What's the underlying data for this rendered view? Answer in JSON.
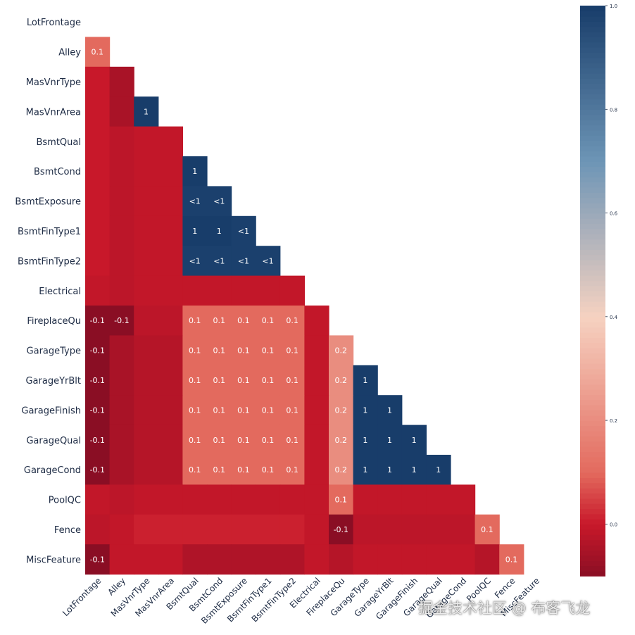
{
  "chart_data": {
    "type": "heatmap",
    "title": "",
    "variables": [
      "LotFrontage",
      "Alley",
      "MasVnrType",
      "MasVnrArea",
      "BsmtQual",
      "BsmtCond",
      "BsmtExposure",
      "BsmtFinType1",
      "BsmtFinType2",
      "Electrical",
      "FireplaceQu",
      "GarageType",
      "GarageYrBlt",
      "GarageFinish",
      "GarageQual",
      "GarageCond",
      "PoolQC",
      "Fence",
      "MiscFeature"
    ],
    "mask": "upper-triangle-and-diagonal",
    "matrix": [
      [],
      [
        0.1
      ],
      [
        0.0,
        -0.05
      ],
      [
        0.0,
        -0.05,
        1.0
      ],
      [
        0.0,
        -0.02,
        -0.01,
        -0.01
      ],
      [
        0.0,
        -0.02,
        -0.01,
        -0.01,
        1.0
      ],
      [
        0.0,
        -0.02,
        -0.01,
        -0.01,
        0.99,
        0.99
      ],
      [
        0.0,
        -0.02,
        -0.01,
        -0.01,
        1.0,
        1.0,
        0.99
      ],
      [
        0.0,
        -0.02,
        -0.01,
        -0.01,
        0.99,
        0.99,
        0.99,
        0.99
      ],
      [
        -0.01,
        -0.02,
        -0.01,
        -0.01,
        -0.01,
        -0.01,
        -0.01,
        -0.01,
        -0.01
      ],
      [
        -0.1,
        -0.1,
        -0.02,
        -0.02,
        0.1,
        0.1,
        0.1,
        0.1,
        0.1,
        -0.01
      ],
      [
        -0.1,
        -0.05,
        -0.03,
        -0.03,
        0.1,
        0.1,
        0.1,
        0.1,
        0.1,
        -0.01,
        0.2
      ],
      [
        -0.1,
        -0.05,
        -0.03,
        -0.03,
        0.1,
        0.1,
        0.1,
        0.1,
        0.1,
        -0.01,
        0.2,
        1.0
      ],
      [
        -0.1,
        -0.05,
        -0.03,
        -0.03,
        0.1,
        0.1,
        0.1,
        0.1,
        0.1,
        -0.01,
        0.2,
        1.0,
        1.0
      ],
      [
        -0.1,
        -0.05,
        -0.03,
        -0.03,
        0.1,
        0.1,
        0.1,
        0.1,
        0.1,
        -0.01,
        0.2,
        1.0,
        1.0,
        1.0
      ],
      [
        -0.1,
        -0.05,
        -0.03,
        -0.03,
        0.1,
        0.1,
        0.1,
        0.1,
        0.1,
        -0.01,
        0.2,
        1.0,
        1.0,
        1.0,
        1.0
      ],
      [
        -0.01,
        -0.02,
        -0.01,
        -0.01,
        -0.01,
        -0.01,
        -0.01,
        -0.01,
        -0.01,
        -0.01,
        0.1,
        -0.01,
        -0.01,
        -0.01,
        -0.01,
        -0.01
      ],
      [
        -0.02,
        -0.01,
        0.01,
        0.01,
        0.01,
        0.01,
        0.01,
        0.01,
        0.01,
        -0.01,
        -0.1,
        -0.02,
        -0.02,
        -0.02,
        -0.02,
        -0.02,
        0.1
      ],
      [
        -0.1,
        -0.01,
        -0.01,
        -0.01,
        -0.04,
        -0.04,
        -0.04,
        -0.04,
        -0.04,
        -0.01,
        -0.03,
        -0.01,
        -0.01,
        -0.01,
        -0.01,
        -0.01,
        -0.03,
        0.1
      ]
    ],
    "annotations": [
      [],
      [
        "0.1"
      ],
      [
        "",
        ""
      ],
      [
        "",
        "",
        "1"
      ],
      [
        "",
        "",
        "",
        ""
      ],
      [
        "",
        "",
        "",
        "",
        "1"
      ],
      [
        "",
        "",
        "",
        "",
        "<1",
        "<1"
      ],
      [
        "",
        "",
        "",
        "",
        "1",
        "1",
        "<1"
      ],
      [
        "",
        "",
        "",
        "",
        "<1",
        "<1",
        "<1",
        "<1"
      ],
      [
        "",
        "",
        "",
        "",
        "",
        "",
        "",
        "",
        ""
      ],
      [
        "-0.1",
        "-0.1",
        "",
        "",
        "0.1",
        "0.1",
        "0.1",
        "0.1",
        "0.1",
        ""
      ],
      [
        "-0.1",
        "",
        "",
        "",
        "0.1",
        "0.1",
        "0.1",
        "0.1",
        "0.1",
        "",
        "0.2"
      ],
      [
        "-0.1",
        "",
        "",
        "",
        "0.1",
        "0.1",
        "0.1",
        "0.1",
        "0.1",
        "",
        "0.2",
        "1"
      ],
      [
        "-0.1",
        "",
        "",
        "",
        "0.1",
        "0.1",
        "0.1",
        "0.1",
        "0.1",
        "",
        "0.2",
        "1",
        "1"
      ],
      [
        "-0.1",
        "",
        "",
        "",
        "0.1",
        "0.1",
        "0.1",
        "0.1",
        "0.1",
        "",
        "0.2",
        "1",
        "1",
        "1"
      ],
      [
        "-0.1",
        "",
        "",
        "",
        "0.1",
        "0.1",
        "0.1",
        "0.1",
        "0.1",
        "",
        "0.2",
        "1",
        "1",
        "1",
        "1"
      ],
      [
        "",
        "",
        "",
        "",
        "",
        "",
        "",
        "",
        "",
        "",
        "0.1",
        "",
        "",
        "",
        "",
        ""
      ],
      [
        "",
        "",
        "",
        "",
        "",
        "",
        "",
        "",
        "",
        "",
        "-0.1",
        "",
        "",
        "",
        "",
        "",
        "0.1"
      ],
      [
        "-0.1",
        "",
        "",
        "",
        "",
        "",
        "",
        "",
        "",
        "",
        "",
        "",
        "",
        "",
        "",
        "",
        "",
        "0.1"
      ]
    ],
    "colorbar": {
      "range": [
        -0.1,
        1.0
      ],
      "ticks": [
        {
          "value": 1.0,
          "label": "1.0"
        },
        {
          "value": 0.8,
          "label": "0.8"
        },
        {
          "value": 0.6,
          "label": "0.6"
        },
        {
          "value": 0.4,
          "label": "0.4"
        },
        {
          "value": 0.2,
          "label": "0.2"
        },
        {
          "value": 0.0,
          "label": "0.0"
        }
      ]
    },
    "colors": {
      "neg": "#8a0e24",
      "zero": "#c8182a",
      "low": "#e36a5e",
      "mid": "#f6d2c1",
      "mid_high": "#6d95b6",
      "high": "#183d6a"
    }
  },
  "watermark": "掘金技术社区 @ 布客飞龙"
}
